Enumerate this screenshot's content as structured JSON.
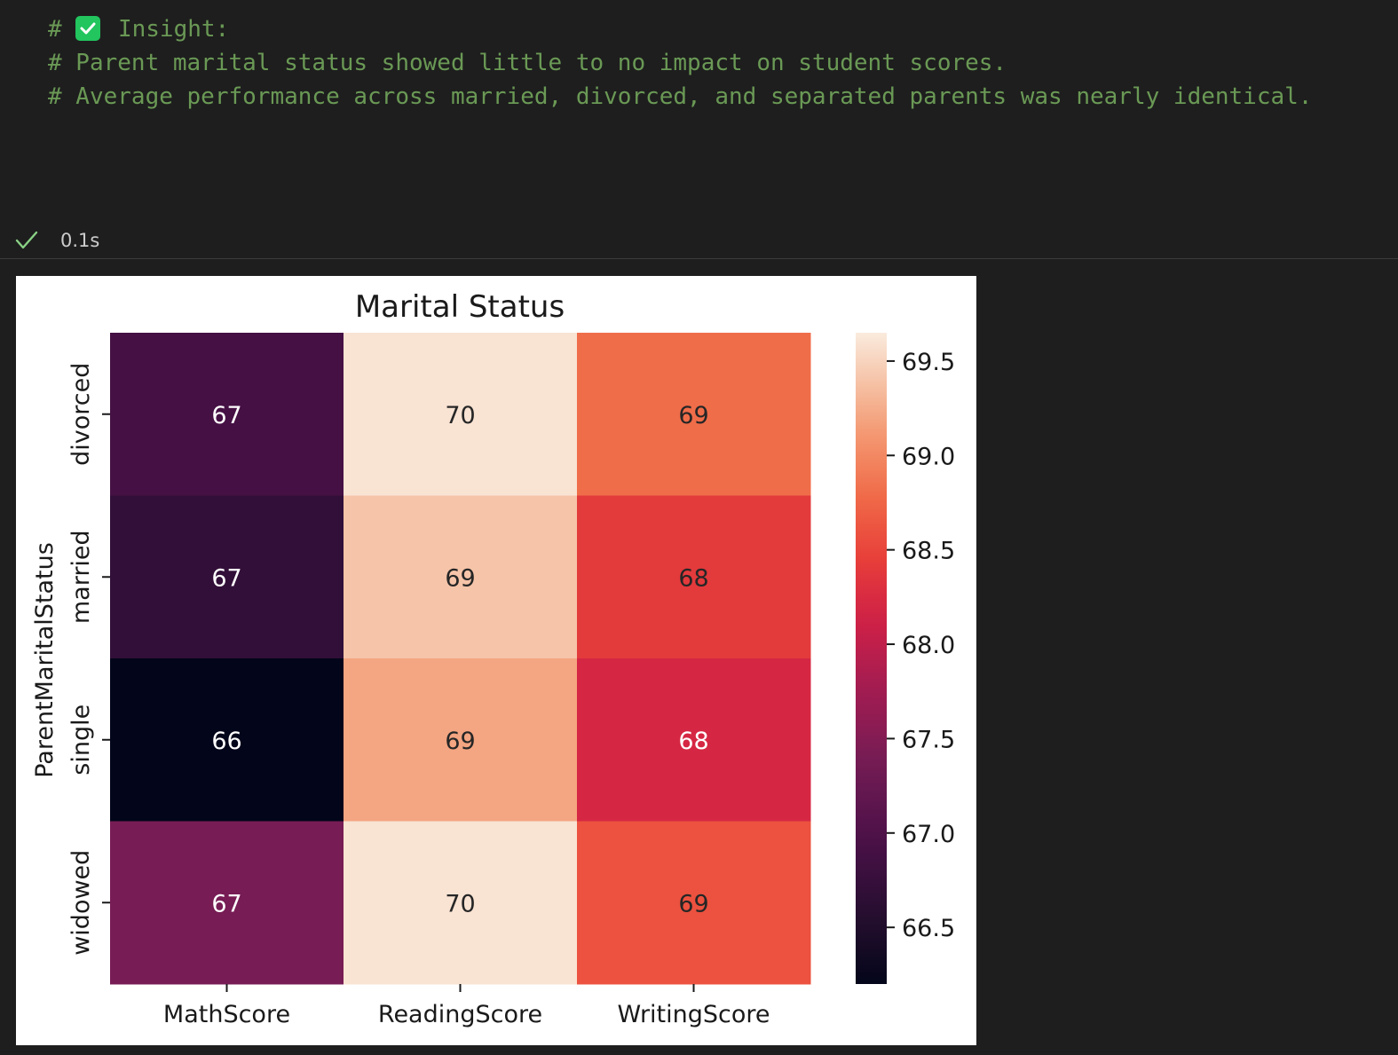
{
  "code": {
    "line1_prefix": "# ",
    "line1_icon": "check-mark-button-icon",
    "line1_text": " Insight:",
    "line2": "# Parent marital status showed little to no impact on student scores.",
    "line3": "# Average performance across married, divorced, and separated parents was nearly identical."
  },
  "status": {
    "icon": "checkmark-icon",
    "duration": "0.1s"
  },
  "chart_data": {
    "type": "heatmap",
    "title": "Marital Status",
    "xlabel": "",
    "ylabel": "ParentMaritalStatus",
    "x_categories": [
      "MathScore",
      "ReadingScore",
      "WritingScore"
    ],
    "y_categories": [
      "divorced",
      "married",
      "single",
      "widowed"
    ],
    "values": [
      [
        66.9,
        69.6,
        68.8
      ],
      [
        66.7,
        69.4,
        68.4
      ],
      [
        66.2,
        69.2,
        68.2
      ],
      [
        67.4,
        69.6,
        68.6
      ]
    ],
    "annotations": [
      [
        "67",
        "70",
        "69"
      ],
      [
        "67",
        "69",
        "68"
      ],
      [
        "66",
        "69",
        "68"
      ],
      [
        "67",
        "70",
        "69"
      ]
    ],
    "colorbar": {
      "vmin": 66.2,
      "vmax": 69.65,
      "ticks": [
        "66.5",
        "67.0",
        "67.5",
        "68.0",
        "68.5",
        "69.0",
        "69.5"
      ],
      "colormap": "rocket"
    }
  }
}
